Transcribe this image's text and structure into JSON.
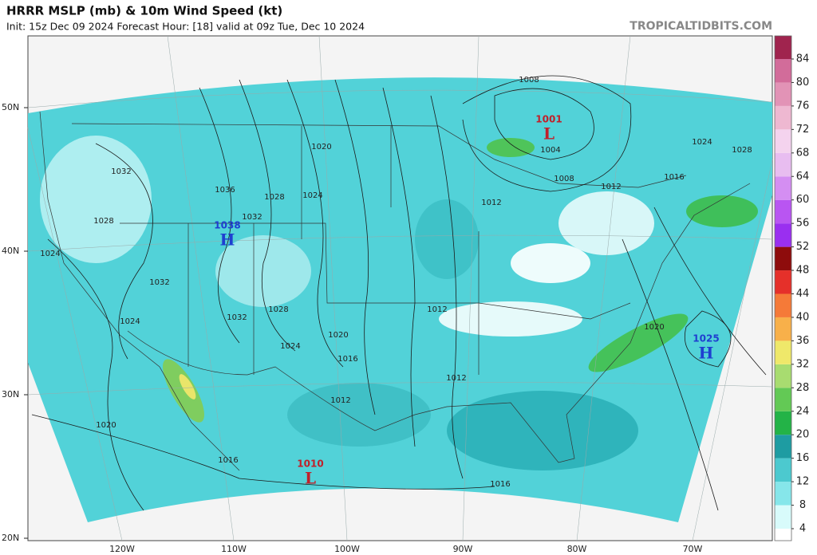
{
  "header": {
    "title": "HRRR MSLP (mb) & 10m Wind Speed (kt)",
    "subtitle": "Init: 15z Dec 09 2024   Forecast Hour: [18]   valid at 09z Tue, Dec 10 2024",
    "watermark": "TROPICALTIDBITS.COM"
  },
  "map": {
    "lat_labels": [
      "50N",
      "40N",
      "30N",
      "20N"
    ],
    "lon_labels": [
      "120W",
      "110W",
      "100W",
      "90W",
      "80W",
      "70W"
    ],
    "centers": [
      {
        "pressure": "1001",
        "symbol": "L"
      },
      {
        "pressure": "1038",
        "symbol": "H"
      },
      {
        "pressure": "1025",
        "symbol": "H"
      },
      {
        "pressure": "1010",
        "symbol": "L"
      }
    ],
    "isobar_labels": [
      "1008",
      "1004",
      "1020",
      "1032",
      "1036",
      "1028",
      "1024",
      "1028",
      "1032",
      "1024",
      "1032",
      "1028",
      "1032",
      "1024",
      "1020",
      "1024",
      "1016",
      "1012",
      "1012",
      "1012",
      "1020",
      "1016",
      "1016",
      "1012",
      "1008",
      "1012",
      "1024",
      "1028",
      "1016",
      "1020"
    ]
  },
  "colorbar": {
    "ticks": [
      4,
      8,
      12,
      16,
      20,
      24,
      28,
      32,
      36,
      40,
      44,
      48,
      52,
      56,
      60,
      64,
      68,
      72,
      76,
      80,
      84
    ],
    "colors": [
      "#ffffff",
      "#d8fbfb",
      "#86e6ea",
      "#4cc9cf",
      "#1e9ca2",
      "#23b347",
      "#63c955",
      "#a8dc70",
      "#efe86a",
      "#f8b04a",
      "#f57a38",
      "#e5302a",
      "#8e0c0c",
      "#9a2ff0",
      "#b955f2",
      "#d48ef2",
      "#e8bdf0",
      "#f4d3ee",
      "#eeb8d1",
      "#e293b6",
      "#d26c9a",
      "#c0477b",
      "#a0244e"
    ]
  }
}
